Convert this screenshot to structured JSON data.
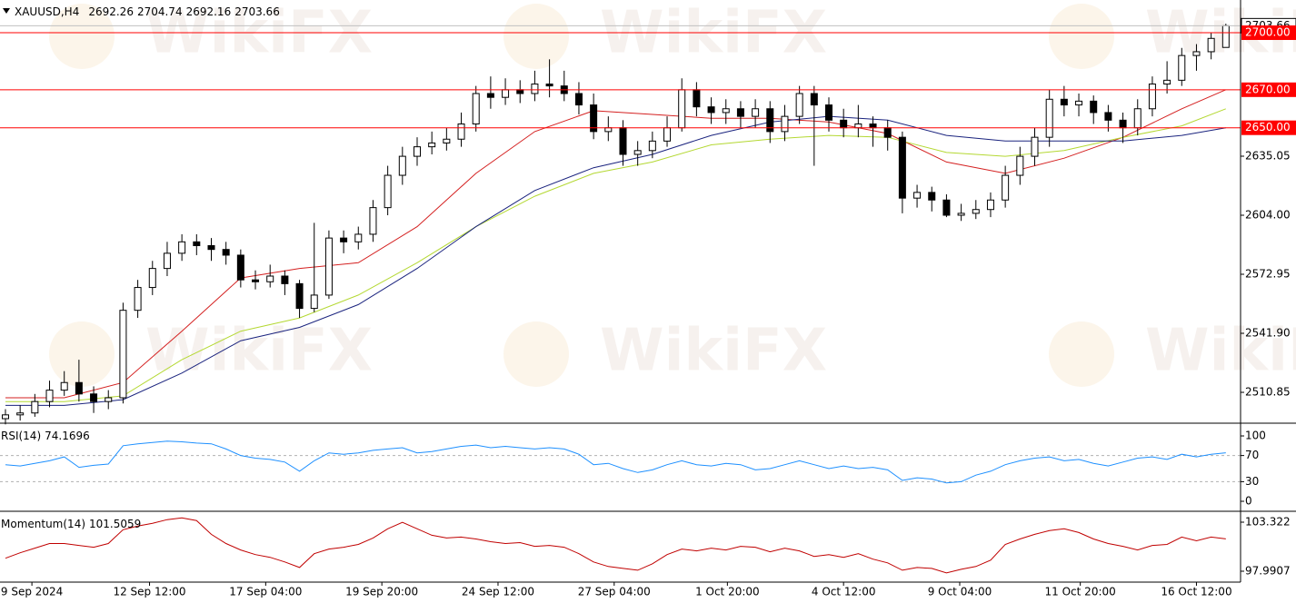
{
  "chart_data": [
    {
      "type": "candlestick",
      "title": "XAUUSD,H4",
      "watermark": "WikiFX",
      "open": [
        2497,
        2499,
        2500,
        2506,
        2512,
        2516,
        2510,
        2506,
        2508,
        2554,
        2566,
        2576,
        2584,
        2590,
        2588,
        2586,
        2583,
        2570,
        2569,
        2572,
        2568,
        2555,
        2562,
        2592,
        2590,
        2594,
        2608,
        2625,
        2635,
        2640,
        2642,
        2644,
        2652,
        2668,
        2666,
        2670,
        2668,
        2673,
        2672,
        2668,
        2662,
        2648,
        2650,
        2636,
        2638,
        2643,
        2650,
        2670,
        2661,
        2658,
        2660,
        2656,
        2660,
        2648,
        2656,
        2668,
        2662,
        2654,
        2650,
        2652,
        2650,
        2645,
        2613,
        2616,
        2612,
        2604,
        2605,
        2607,
        2612,
        2625,
        2635,
        2645,
        2665,
        2662,
        2664,
        2658,
        2654,
        2650,
        2660,
        2673,
        2675,
        2688,
        2690,
        2692.26
      ],
      "high": [
        2502,
        2504,
        2510,
        2517,
        2522,
        2528,
        2514,
        2512,
        2558,
        2570,
        2580,
        2590,
        2594,
        2594,
        2592,
        2590,
        2586,
        2575,
        2578,
        2575,
        2570,
        2600,
        2596,
        2596,
        2598,
        2612,
        2630,
        2640,
        2645,
        2648,
        2650,
        2658,
        2672,
        2677,
        2676,
        2675,
        2680,
        2686,
        2680,
        2674,
        2668,
        2656,
        2654,
        2643,
        2648,
        2656,
        2676,
        2674,
        2666,
        2665,
        2664,
        2665,
        2664,
        2662,
        2672,
        2672,
        2666,
        2660,
        2662,
        2656,
        2654,
        2648,
        2620,
        2619,
        2615,
        2610,
        2612,
        2616,
        2630,
        2640,
        2650,
        2670,
        2672,
        2668,
        2667,
        2662,
        2658,
        2665,
        2677,
        2685,
        2692,
        2694,
        2700,
        2704.74
      ],
      "low": [
        2494,
        2496,
        2498,
        2503,
        2509,
        2506,
        2500,
        2502,
        2505,
        2550,
        2562,
        2572,
        2580,
        2583,
        2580,
        2578,
        2566,
        2565,
        2566,
        2562,
        2550,
        2553,
        2560,
        2584,
        2586,
        2590,
        2604,
        2620,
        2630,
        2636,
        2638,
        2640,
        2648,
        2660,
        2662,
        2663,
        2664,
        2666,
        2664,
        2657,
        2644,
        2643,
        2630,
        2630,
        2634,
        2640,
        2648,
        2656,
        2652,
        2652,
        2650,
        2650,
        2642,
        2643,
        2652,
        2630,
        2648,
        2645,
        2645,
        2640,
        2638,
        2605,
        2608,
        2606,
        2603,
        2601,
        2602,
        2603,
        2608,
        2620,
        2630,
        2640,
        2656,
        2656,
        2652,
        2648,
        2642,
        2646,
        2656,
        2668,
        2672,
        2680,
        2686,
        2692.16
      ],
      "close": [
        2499,
        2500,
        2506,
        2512,
        2516,
        2510,
        2506,
        2508,
        2554,
        2566,
        2576,
        2584,
        2590,
        2588,
        2586,
        2583,
        2570,
        2569,
        2572,
        2568,
        2555,
        2562,
        2592,
        2590,
        2594,
        2608,
        2625,
        2635,
        2640,
        2642,
        2644,
        2652,
        2668,
        2666,
        2670,
        2668,
        2673,
        2672,
        2668,
        2662,
        2648,
        2650,
        2636,
        2638,
        2643,
        2650,
        2670,
        2661,
        2658,
        2660,
        2656,
        2660,
        2648,
        2656,
        2668,
        2662,
        2654,
        2650,
        2652,
        2650,
        2645,
        2613,
        2616,
        2612,
        2604,
        2605,
        2607,
        2612,
        2625,
        2635,
        2645,
        2665,
        2662,
        2664,
        2658,
        2654,
        2650,
        2660,
        2673,
        2675,
        2688,
        2690,
        2697,
        2703.66
      ],
      "up_color": "#ffffff",
      "down_color": "#000000",
      "ma": [
        {
          "color": "#d42020",
          "x": [
            0,
            4,
            8,
            12,
            16,
            20,
            24,
            28,
            32,
            36,
            40,
            44,
            48,
            52,
            56,
            60,
            64,
            68,
            72,
            76,
            80,
            83
          ],
          "values": [
            2508,
            2508,
            2516,
            2543,
            2571,
            2576,
            2579,
            2598,
            2626,
            2648,
            2659,
            2657,
            2655,
            2655,
            2653,
            2647,
            2632,
            2626,
            2634,
            2645,
            2660,
            2670
          ]
        },
        {
          "color": "#b4d832",
          "x": [
            0,
            4,
            8,
            12,
            16,
            20,
            24,
            28,
            32,
            36,
            40,
            44,
            48,
            52,
            56,
            60,
            64,
            68,
            72,
            76,
            80,
            83
          ],
          "values": [
            2506,
            2506,
            2509,
            2528,
            2543,
            2550,
            2562,
            2579,
            2598,
            2614,
            2626,
            2632,
            2641,
            2644,
            2646,
            2645,
            2637,
            2635,
            2638,
            2645,
            2651,
            2660
          ]
        },
        {
          "color": "#1a237e",
          "x": [
            0,
            4,
            8,
            12,
            16,
            20,
            24,
            28,
            32,
            36,
            40,
            44,
            48,
            52,
            56,
            60,
            64,
            68,
            72,
            76,
            80,
            83
          ],
          "values": [
            2504,
            2504,
            2507,
            2521,
            2538,
            2545,
            2557,
            2576,
            2598,
            2617,
            2629,
            2636,
            2646,
            2653,
            2656,
            2654,
            2646,
            2643,
            2643,
            2643,
            2646,
            2650
          ]
        }
      ],
      "levels": [
        {
          "value": 2700,
          "label": "2700.00"
        },
        {
          "value": 2670,
          "label": "2670.00"
        },
        {
          "value": 2650,
          "label": "2650.00"
        }
      ],
      "level_color": "#ff0000",
      "xlim": [
        -0.37,
        84
      ],
      "ylim": [
        2495.1,
        2717.2
      ],
      "yticks": [
        2510.85,
        {
          "value": 2541.9,
          "label": "2541.90"
        },
        2572.95,
        {
          "value": 2604,
          "label": "2604.00"
        },
        2635.05
      ],
      "xticks": [
        {
          "value": 1.8,
          "label": "9 Sep 2024"
        },
        {
          "value": 9.8,
          "label": "12 Sep 12:00"
        },
        {
          "value": 17.7,
          "label": "17 Sep 04:00"
        },
        {
          "value": 25.6,
          "label": "19 Sep 20:00"
        },
        {
          "value": 33.5,
          "label": "24 Sep 12:00"
        },
        {
          "value": 41.4,
          "label": "27 Sep 04:00"
        },
        {
          "value": 49.1,
          "label": "1 Oct 20:00"
        },
        {
          "value": 57.0,
          "label": "4 Oct 12:00"
        },
        {
          "value": 64.9,
          "label": "9 Oct 04:00"
        },
        {
          "value": 73.1,
          "label": "11 Oct 20:00"
        },
        {
          "value": 81.0,
          "label": "16 Oct 12:00"
        }
      ]
    },
    {
      "type": "line",
      "title": "RSI(14)",
      "color": "#1e90ff",
      "values": [
        56,
        54,
        58,
        62,
        68,
        52,
        55,
        57,
        85,
        88,
        90,
        92,
        91,
        89,
        88,
        80,
        70,
        66,
        64,
        60,
        46,
        62,
        74,
        72,
        74,
        78,
        80,
        82,
        74,
        76,
        80,
        84,
        86,
        82,
        84,
        82,
        80,
        82,
        80,
        72,
        56,
        58,
        50,
        44,
        48,
        56,
        62,
        56,
        54,
        58,
        56,
        48,
        50,
        56,
        62,
        56,
        50,
        54,
        50,
        52,
        48,
        32,
        36,
        34,
        28,
        30,
        40,
        46,
        56,
        62,
        66,
        68,
        62,
        64,
        58,
        54,
        60,
        66,
        68,
        64,
        72,
        68,
        72,
        74.1696
      ],
      "xlim": [
        -0.37,
        84
      ],
      "ylim": [
        -13.9,
        116.7
      ],
      "yticks": [
        100,
        70,
        30,
        0
      ],
      "levels": [
        70,
        30
      ]
    },
    {
      "type": "line",
      "title": "Momentum(14)",
      "color": "#c00000",
      "values": [
        99.4,
        100.0,
        100.5,
        101.0,
        101.0,
        100.8,
        100.6,
        101.0,
        102.5,
        102.9,
        103.2,
        103.6,
        103.8,
        103.5,
        102.0,
        101.0,
        100.3,
        99.8,
        99.5,
        99.0,
        98.4,
        99.9,
        100.4,
        100.6,
        100.9,
        101.6,
        102.6,
        103.3,
        102.6,
        101.9,
        101.6,
        101.7,
        101.5,
        101.2,
        101.0,
        101.1,
        100.7,
        100.8,
        100.6,
        99.9,
        99.0,
        98.5,
        98.3,
        98.1,
        98.8,
        99.8,
        100.4,
        100.2,
        100.5,
        100.3,
        100.7,
        100.6,
        100.1,
        100.5,
        100.2,
        99.6,
        99.8,
        99.5,
        99.9,
        99.3,
        98.9,
        98.1,
        98.4,
        98.3,
        97.8,
        98.2,
        98.5,
        99.2,
        100.9,
        101.5,
        102.0,
        102.4,
        102.6,
        102.2,
        101.5,
        101.0,
        100.7,
        100.3,
        100.8,
        100.9,
        101.7,
        101.3,
        101.7,
        101.5059
      ],
      "xlim": [
        -0.37,
        84
      ],
      "ylim": [
        96.905,
        104.31
      ],
      "yticks": [
        103.322,
        97.9907
      ]
    }
  ]
}
